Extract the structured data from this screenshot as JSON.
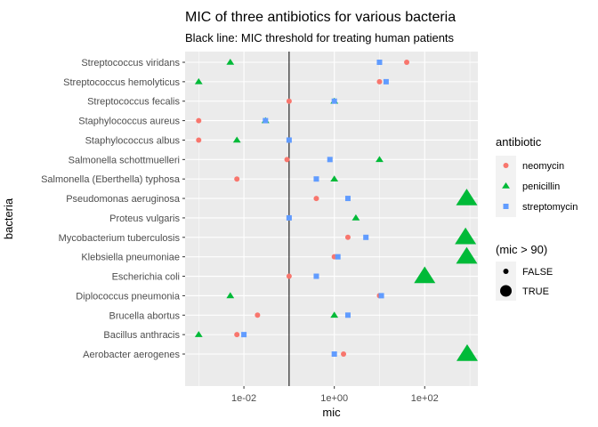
{
  "chart_data": {
    "type": "scatter",
    "title": "MIC of three antibiotics for various bacteria",
    "subtitle": "Black line: MIC threshold for treating human patients",
    "xlabel": "mic",
    "ylabel": "bacteria",
    "x_scale": "log10",
    "xlim": [
      0.0005,
      1500
    ],
    "x_ticks": [
      0.01,
      1,
      100
    ],
    "x_tick_labels": [
      "1e-02",
      "1e+00",
      "1e+02"
    ],
    "threshold_x": 0.1,
    "grid": true,
    "legend_placement": "right",
    "categories": [
      "Streptococcus viridans",
      "Streptococcus hemolyticus",
      "Streptococcus fecalis",
      "Staphylococcus aureus",
      "Staphylococcus albus",
      "Salmonella schottmuelleri",
      "Salmonella (Eberthella) typhosa",
      "Pseudomonas aeruginosa",
      "Proteus vulgaris",
      "Mycobacterium tuberculosis",
      "Klebsiella pneumoniae",
      "Escherichia coli",
      "Diplococcus pneumonia",
      "Brucella abortus",
      "Bacillus anthracis",
      "Aerobacter aerogenes"
    ],
    "series": [
      {
        "name": "neomycin",
        "color": "#F8766D",
        "shape": "circle",
        "values": [
          40,
          10,
          0.1,
          0.001,
          0.001,
          0.09,
          0.007,
          0.4,
          0.1,
          2,
          1,
          0.1,
          10,
          0.02,
          0.007,
          1.6
        ]
      },
      {
        "name": "penicillin",
        "color": "#00BA38",
        "shape": "triangle",
        "values": [
          0.005,
          0.001,
          1,
          0.03,
          0.007,
          10,
          1,
          850,
          3,
          800,
          850,
          100,
          0.005,
          1,
          0.001,
          870
        ]
      },
      {
        "name": "streptomycin",
        "color": "#619CFF",
        "shape": "square",
        "values": [
          10,
          14,
          1,
          0.03,
          0.1,
          0.8,
          0.4,
          2,
          0.1,
          5,
          1.2,
          0.4,
          11,
          2,
          0.01,
          1
        ]
      }
    ],
    "legend": {
      "color_title": "antibiotic",
      "size_title": "(mic > 90)",
      "size_entries": [
        "FALSE",
        "TRUE"
      ]
    }
  }
}
